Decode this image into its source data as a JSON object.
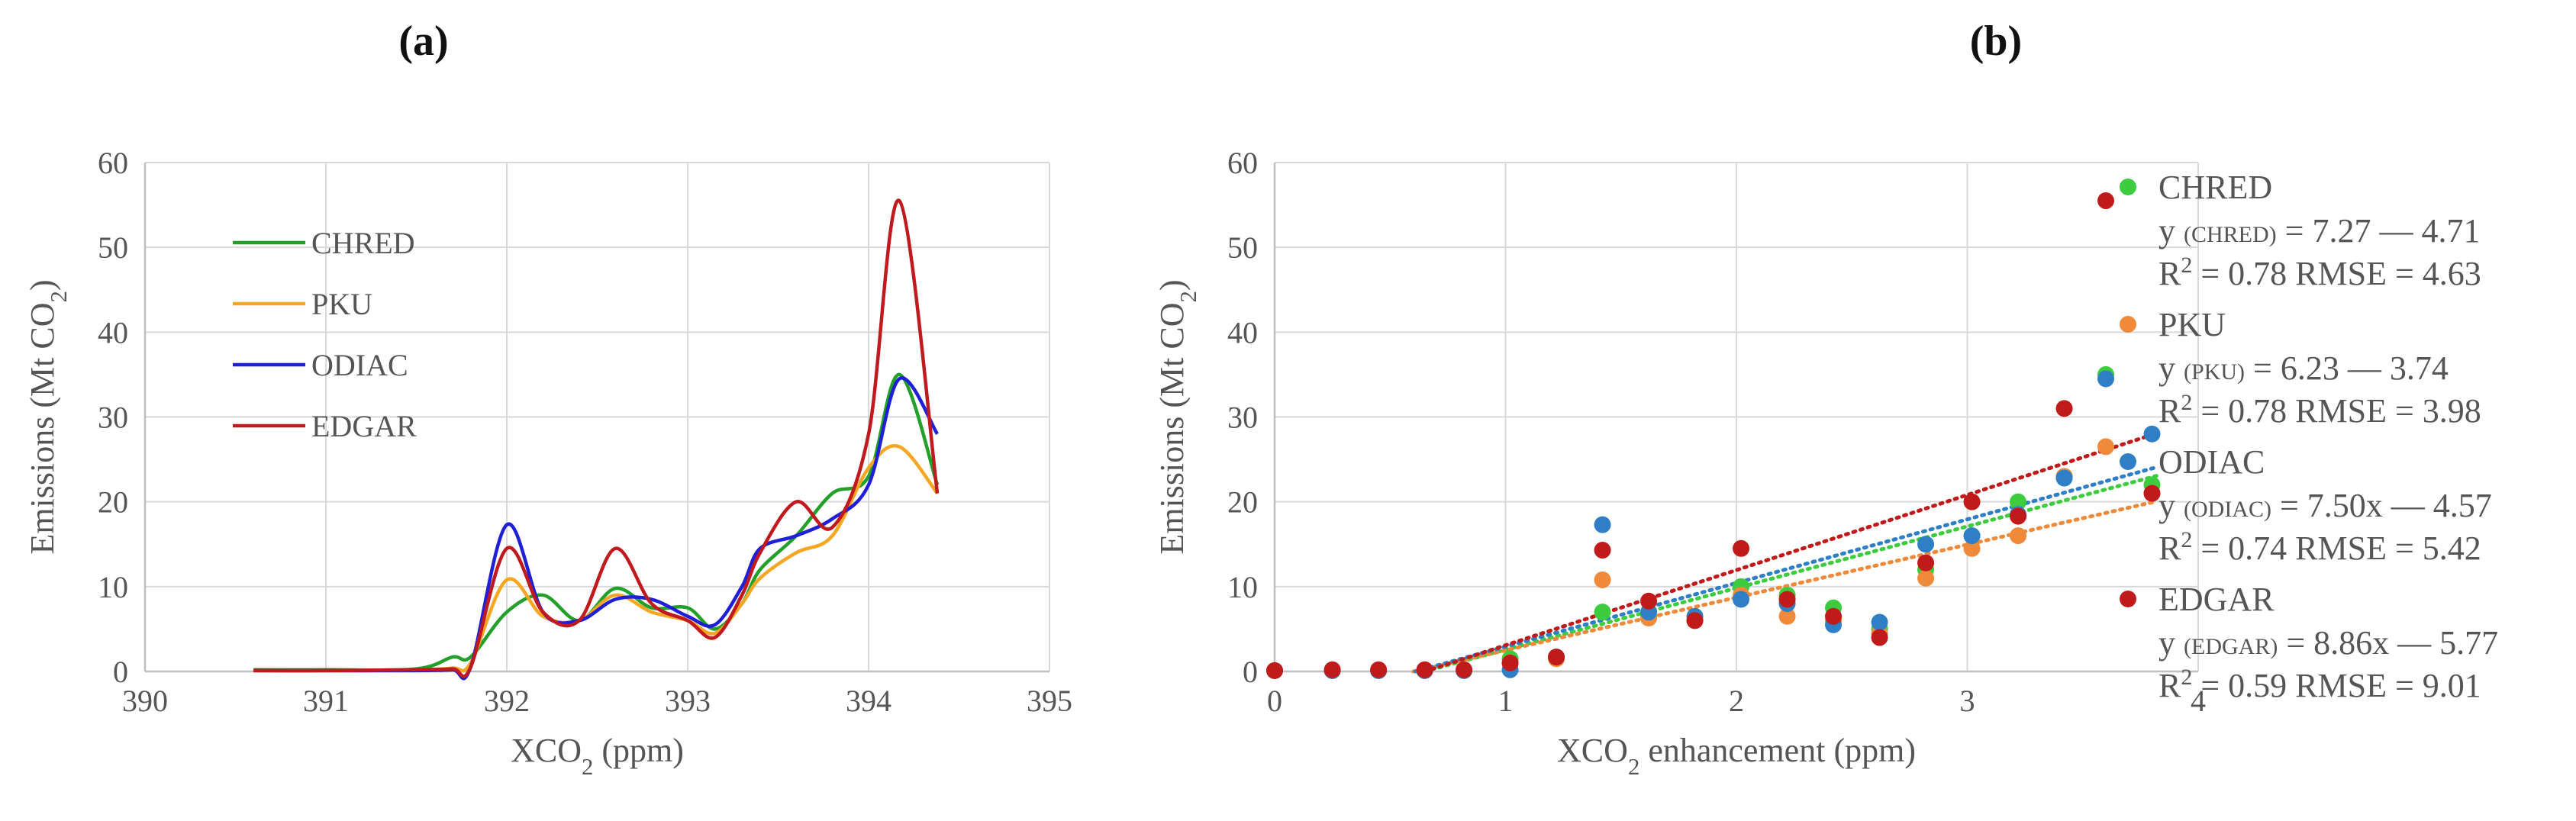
{
  "panels": {
    "a_label": "(a)",
    "b_label": "(b)"
  },
  "chart_data": [
    {
      "id": "a",
      "type": "line",
      "title": "",
      "xlabel": "XCO2 (ppm)",
      "ylabel": "Emissions (Mt CO2)",
      "xlim": [
        390,
        395
      ],
      "ylim": [
        0,
        60
      ],
      "xticks": [
        390,
        391,
        392,
        393,
        394,
        395
      ],
      "yticks": [
        0,
        10,
        20,
        30,
        40,
        50,
        60
      ],
      "grid": true,
      "legend_position": "top-left",
      "series": [
        {
          "name": "CHRED",
          "color": "#22a02a",
          "x": [
            390.6,
            391.0,
            391.5,
            391.7,
            391.8,
            392.0,
            392.2,
            392.4,
            392.6,
            392.8,
            393.0,
            393.15,
            393.3,
            393.4,
            393.6,
            393.8,
            394.0,
            394.17,
            394.38
          ],
          "y": [
            0.2,
            0.2,
            0.3,
            1.7,
            1.7,
            7.0,
            9.0,
            6.0,
            9.8,
            7.5,
            7.5,
            5.0,
            8.0,
            12.0,
            16.0,
            21.0,
            23.0,
            35.0,
            22.0
          ]
        },
        {
          "name": "PKU",
          "color": "#f5a623",
          "x": [
            390.6,
            391.0,
            391.5,
            391.7,
            391.8,
            392.0,
            392.2,
            392.4,
            392.6,
            392.8,
            393.0,
            393.15,
            393.3,
            393.4,
            393.6,
            393.8,
            394.0,
            394.17,
            394.38
          ],
          "y": [
            0.1,
            0.1,
            0.2,
            0.4,
            1.0,
            10.8,
            6.5,
            6.0,
            9.0,
            7.0,
            6.0,
            4.5,
            8.0,
            11.0,
            14.0,
            16.0,
            24.0,
            26.5,
            21.0
          ]
        },
        {
          "name": "ODIAC",
          "color": "#1f1fd6",
          "x": [
            390.6,
            391.0,
            391.5,
            391.7,
            391.8,
            392.0,
            392.2,
            392.4,
            392.6,
            392.8,
            393.0,
            393.15,
            393.3,
            393.4,
            393.6,
            393.8,
            394.0,
            394.17,
            394.38
          ],
          "y": [
            0.1,
            0.1,
            0.1,
            0.2,
            0.5,
            17.3,
            7.0,
            6.0,
            8.5,
            8.5,
            6.5,
            5.5,
            10.0,
            14.5,
            16.0,
            18.0,
            22.0,
            34.5,
            28.0
          ]
        },
        {
          "name": "EDGAR",
          "color": "#c0191e",
          "x": [
            390.6,
            391.0,
            391.5,
            391.7,
            391.8,
            392.0,
            392.2,
            392.4,
            392.6,
            392.8,
            393.0,
            393.15,
            393.3,
            393.4,
            393.6,
            393.8,
            394.0,
            394.17,
            394.38
          ],
          "y": [
            0.1,
            0.1,
            0.2,
            0.3,
            0.5,
            14.5,
            7.0,
            6.0,
            14.5,
            8.0,
            6.0,
            4.0,
            9.0,
            14.0,
            20.0,
            17.0,
            28.0,
            55.5,
            21.0
          ]
        }
      ]
    },
    {
      "id": "b",
      "type": "scatter",
      "title": "",
      "xlabel": "XCO2 enhancement (ppm)",
      "ylabel": "Emissions (Mt CO2)",
      "xlim": [
        0,
        4
      ],
      "ylim": [
        0,
        60
      ],
      "xticks": [
        0,
        1,
        2,
        3,
        4
      ],
      "yticks": [
        0,
        10,
        20,
        30,
        40,
        50,
        60
      ],
      "grid": true,
      "legend_position": "right",
      "series": [
        {
          "name": "CHRED",
          "color": "#3dcc3d",
          "x": [
            0.0,
            0.25,
            0.45,
            0.65,
            0.82,
            1.02,
            1.22,
            1.42,
            1.62,
            1.82,
            2.02,
            2.22,
            2.42,
            2.62,
            2.82,
            3.02,
            3.22,
            3.42,
            3.6,
            3.8
          ],
          "y": [
            0.1,
            0.1,
            0.1,
            0.1,
            0.1,
            1.5,
            1.7,
            7.0,
            6.5,
            6.0,
            10.0,
            9.0,
            7.5,
            5.0,
            12.0,
            16.0,
            20.0,
            23.0,
            35.0,
            22.0
          ],
          "fit": {
            "slope": 7.27,
            "intercept": -4.71
          },
          "equation": "y (CHRED) = 7.27 — 4.71",
          "stats": "R2 = 0.78 RMSE = 4.63"
        },
        {
          "name": "PKU",
          "color": "#ef8a3a",
          "x": [
            0.0,
            0.25,
            0.45,
            0.65,
            0.82,
            1.02,
            1.22,
            1.42,
            1.62,
            1.82,
            2.02,
            2.22,
            2.42,
            2.62,
            2.82,
            3.02,
            3.22,
            3.42,
            3.6,
            3.8
          ],
          "y": [
            0.1,
            0.1,
            0.1,
            0.1,
            0.2,
            1.0,
            1.5,
            10.8,
            6.3,
            6.0,
            9.0,
            6.5,
            6.0,
            4.5,
            11.0,
            14.5,
            16.0,
            23.0,
            26.5,
            21.0
          ],
          "fit": {
            "slope": 6.23,
            "intercept": -3.74
          },
          "equation": "y (PKU) = 6.23 — 3.74",
          "stats": "R2 = 0.78 RMSE = 3.98"
        },
        {
          "name": "ODIAC",
          "color": "#2f7fc6",
          "x": [
            0.0,
            0.25,
            0.45,
            0.65,
            0.82,
            1.02,
            1.22,
            1.42,
            1.62,
            1.82,
            2.02,
            2.22,
            2.42,
            2.62,
            2.82,
            3.02,
            3.22,
            3.42,
            3.6,
            3.8
          ],
          "y": [
            0.1,
            0.1,
            0.1,
            0.1,
            0.1,
            0.2,
            1.7,
            17.3,
            7.0,
            6.5,
            8.5,
            8.0,
            5.5,
            5.8,
            15.0,
            16.0,
            18.5,
            22.8,
            34.5,
            28.0
          ],
          "fit": {
            "slope": 7.5,
            "intercept": -4.57
          },
          "equation": "y (ODIAC) = 7.50x — 4.57",
          "stats": "R2 = 0.74 RMSE = 5.42"
        },
        {
          "name": "EDGAR",
          "color": "#c01a1a",
          "x": [
            0.0,
            0.25,
            0.45,
            0.65,
            0.82,
            1.02,
            1.22,
            1.42,
            1.62,
            1.82,
            2.02,
            2.22,
            2.42,
            2.62,
            2.82,
            3.02,
            3.22,
            3.42,
            3.6,
            3.8
          ],
          "y": [
            0.1,
            0.2,
            0.2,
            0.2,
            0.2,
            1.0,
            1.7,
            14.3,
            8.3,
            6.0,
            14.5,
            8.5,
            6.5,
            4.0,
            12.8,
            20.0,
            18.3,
            31.0,
            55.5,
            21.0
          ],
          "fit": {
            "slope": 8.86,
            "intercept": -5.77
          },
          "equation": "y (EDGAR) = 8.86x — 5.77",
          "stats": "R2 = 0.59 RMSE = 9.01"
        }
      ]
    }
  ]
}
